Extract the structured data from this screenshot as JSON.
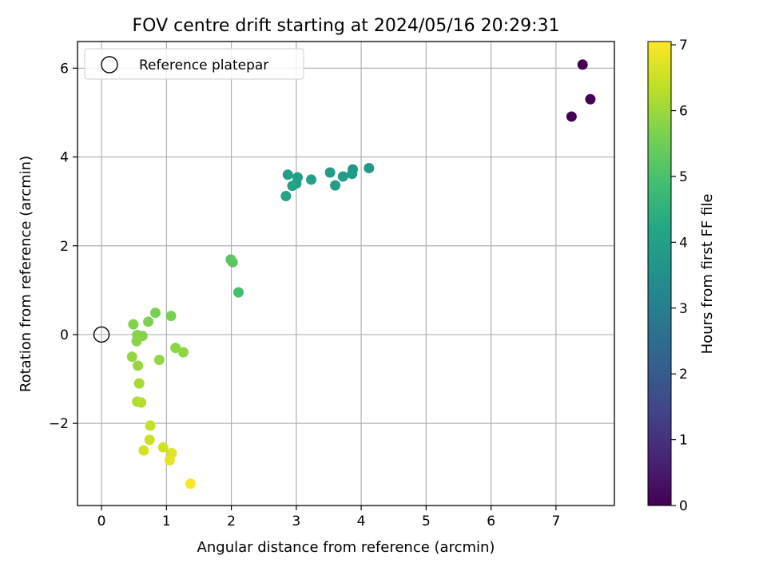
{
  "chart_data": {
    "type": "scatter",
    "title": "FOV centre drift starting at 2024/05/16 20:29:31",
    "xlabel": "Angular distance from reference (arcmin)",
    "ylabel": "Rotation from reference (arcmin)",
    "xlim": [
      -0.37,
      7.9
    ],
    "ylim": [
      -3.85,
      6.6
    ],
    "xticks": [
      0,
      1,
      2,
      3,
      4,
      5,
      6,
      7
    ],
    "yticks": [
      -2,
      0,
      2,
      4,
      6
    ],
    "ytick_labels": [
      "−2",
      "0",
      "2",
      "4",
      "6"
    ],
    "grid": true,
    "legend": {
      "location": "top-left",
      "entries": [
        {
          "label": "Reference platepar",
          "marker": "open-circle"
        }
      ]
    },
    "reference_point": {
      "x": 0,
      "y": 0
    },
    "colorbar": {
      "label": "Hours from first FF file",
      "colormap": "viridis",
      "range": [
        0,
        7.05
      ],
      "ticks": [
        0,
        1,
        2,
        3,
        4,
        5,
        6,
        7
      ]
    },
    "points": [
      {
        "x": 7.41,
        "y": 6.08,
        "c": 0.0
      },
      {
        "x": 7.53,
        "y": 5.3,
        "c": 0.0
      },
      {
        "x": 7.24,
        "y": 4.91,
        "c": 0.0
      },
      {
        "x": 4.12,
        "y": 3.75,
        "c": 3.7
      },
      {
        "x": 3.87,
        "y": 3.72,
        "c": 3.75
      },
      {
        "x": 3.86,
        "y": 3.62,
        "c": 3.8
      },
      {
        "x": 3.52,
        "y": 3.65,
        "c": 3.85
      },
      {
        "x": 3.72,
        "y": 3.56,
        "c": 3.85
      },
      {
        "x": 3.6,
        "y": 3.36,
        "c": 3.9
      },
      {
        "x": 3.23,
        "y": 3.49,
        "c": 3.95
      },
      {
        "x": 3.02,
        "y": 3.54,
        "c": 3.95
      },
      {
        "x": 2.87,
        "y": 3.6,
        "c": 4.0
      },
      {
        "x": 3.0,
        "y": 3.4,
        "c": 4.0
      },
      {
        "x": 2.94,
        "y": 3.35,
        "c": 4.05
      },
      {
        "x": 2.84,
        "y": 3.12,
        "c": 4.1
      },
      {
        "x": 2.11,
        "y": 0.95,
        "c": 4.9
      },
      {
        "x": 1.99,
        "y": 1.69,
        "c": 5.2
      },
      {
        "x": 2.02,
        "y": 1.63,
        "c": 5.25
      },
      {
        "x": 0.83,
        "y": 0.49,
        "c": 5.6
      },
      {
        "x": 1.07,
        "y": 0.42,
        "c": 5.6
      },
      {
        "x": 0.72,
        "y": 0.29,
        "c": 5.65
      },
      {
        "x": 0.49,
        "y": 0.23,
        "c": 5.7
      },
      {
        "x": 0.55,
        "y": -0.01,
        "c": 5.75
      },
      {
        "x": 0.63,
        "y": -0.03,
        "c": 5.75
      },
      {
        "x": 0.54,
        "y": -0.15,
        "c": 5.8
      },
      {
        "x": 1.14,
        "y": -0.3,
        "c": 5.85
      },
      {
        "x": 1.26,
        "y": -0.4,
        "c": 5.85
      },
      {
        "x": 0.47,
        "y": -0.5,
        "c": 5.9
      },
      {
        "x": 0.89,
        "y": -0.57,
        "c": 5.9
      },
      {
        "x": 0.56,
        "y": -0.7,
        "c": 5.95
      },
      {
        "x": 0.58,
        "y": -1.1,
        "c": 6.1
      },
      {
        "x": 0.55,
        "y": -1.51,
        "c": 6.2
      },
      {
        "x": 0.61,
        "y": -1.53,
        "c": 6.25
      },
      {
        "x": 0.75,
        "y": -2.05,
        "c": 6.4
      },
      {
        "x": 0.74,
        "y": -2.37,
        "c": 6.5
      },
      {
        "x": 0.95,
        "y": -2.54,
        "c": 6.55
      },
      {
        "x": 0.65,
        "y": -2.61,
        "c": 6.6
      },
      {
        "x": 1.08,
        "y": -2.67,
        "c": 6.7
      },
      {
        "x": 1.05,
        "y": -2.83,
        "c": 6.8
      },
      {
        "x": 1.37,
        "y": -3.36,
        "c": 7.0
      }
    ]
  }
}
